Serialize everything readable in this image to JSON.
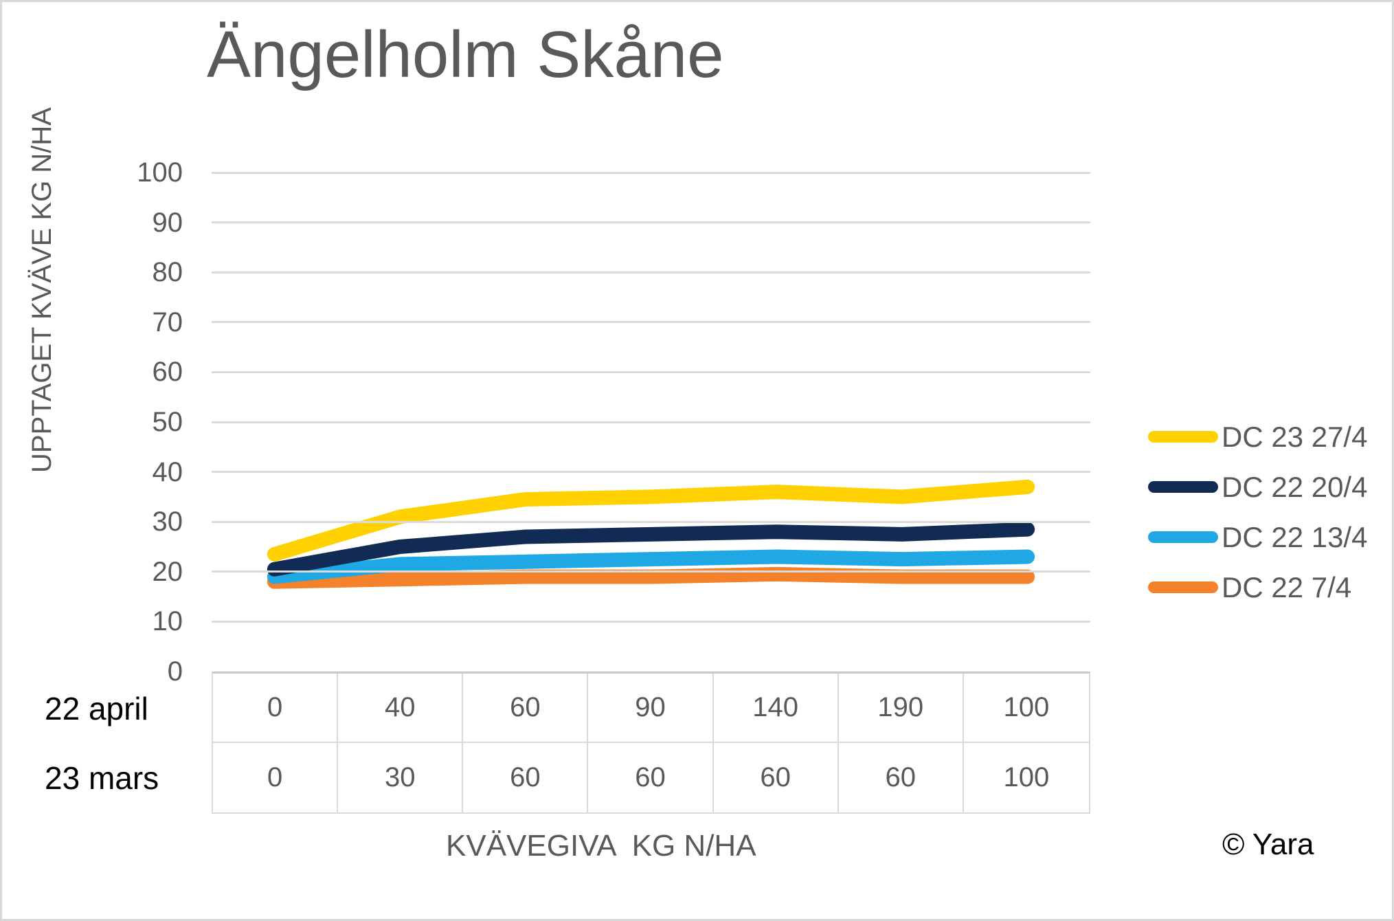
{
  "title": "Ängelholm Skåne",
  "watermark": "© Yara",
  "chart_data": {
    "type": "line",
    "title": "Ängelholm Skåne",
    "xlabel": "KVÄVEGIVA  KG N/HA",
    "ylabel": "UPPTAGET KVÄVE KG N/HA",
    "ylim": [
      0,
      100
    ],
    "yticks": [
      100,
      90,
      80,
      70,
      60,
      50,
      40,
      30,
      20,
      10,
      0
    ],
    "grid": "horizontal-only",
    "legend_position": "right-middle",
    "x_axis_table": {
      "rows": [
        {
          "label": "22 april",
          "values": [
            "0",
            "40",
            "60",
            "90",
            "140",
            "190",
            "100"
          ]
        },
        {
          "label": "23 mars",
          "values": [
            "0",
            "30",
            "60",
            "60",
            "60",
            "60",
            "100"
          ]
        }
      ]
    },
    "series": [
      {
        "name": "DC 23 27/4",
        "color": "#FFD100",
        "values": [
          23.5,
          31,
          34.5,
          35,
          36,
          35,
          37
        ]
      },
      {
        "name": "DC 22 20/4",
        "color": "#112B54",
        "values": [
          20.5,
          25,
          27,
          27.5,
          28,
          27.5,
          28.5
        ]
      },
      {
        "name": "DC 22 13/4",
        "color": "#1FA8E4",
        "values": [
          19,
          21.5,
          22,
          22.5,
          23,
          22.5,
          23
        ]
      },
      {
        "name": "DC 22 7/4",
        "color": "#F5822B",
        "values": [
          18,
          18.5,
          19,
          19,
          19.5,
          19,
          19
        ]
      }
    ]
  },
  "colors": {
    "text_gray": "#595959",
    "gridline": "#DBDBDB",
    "table_border": "#D9D9D9",
    "background": "#FFFFFF",
    "frame_border": "#D8D8D8"
  }
}
